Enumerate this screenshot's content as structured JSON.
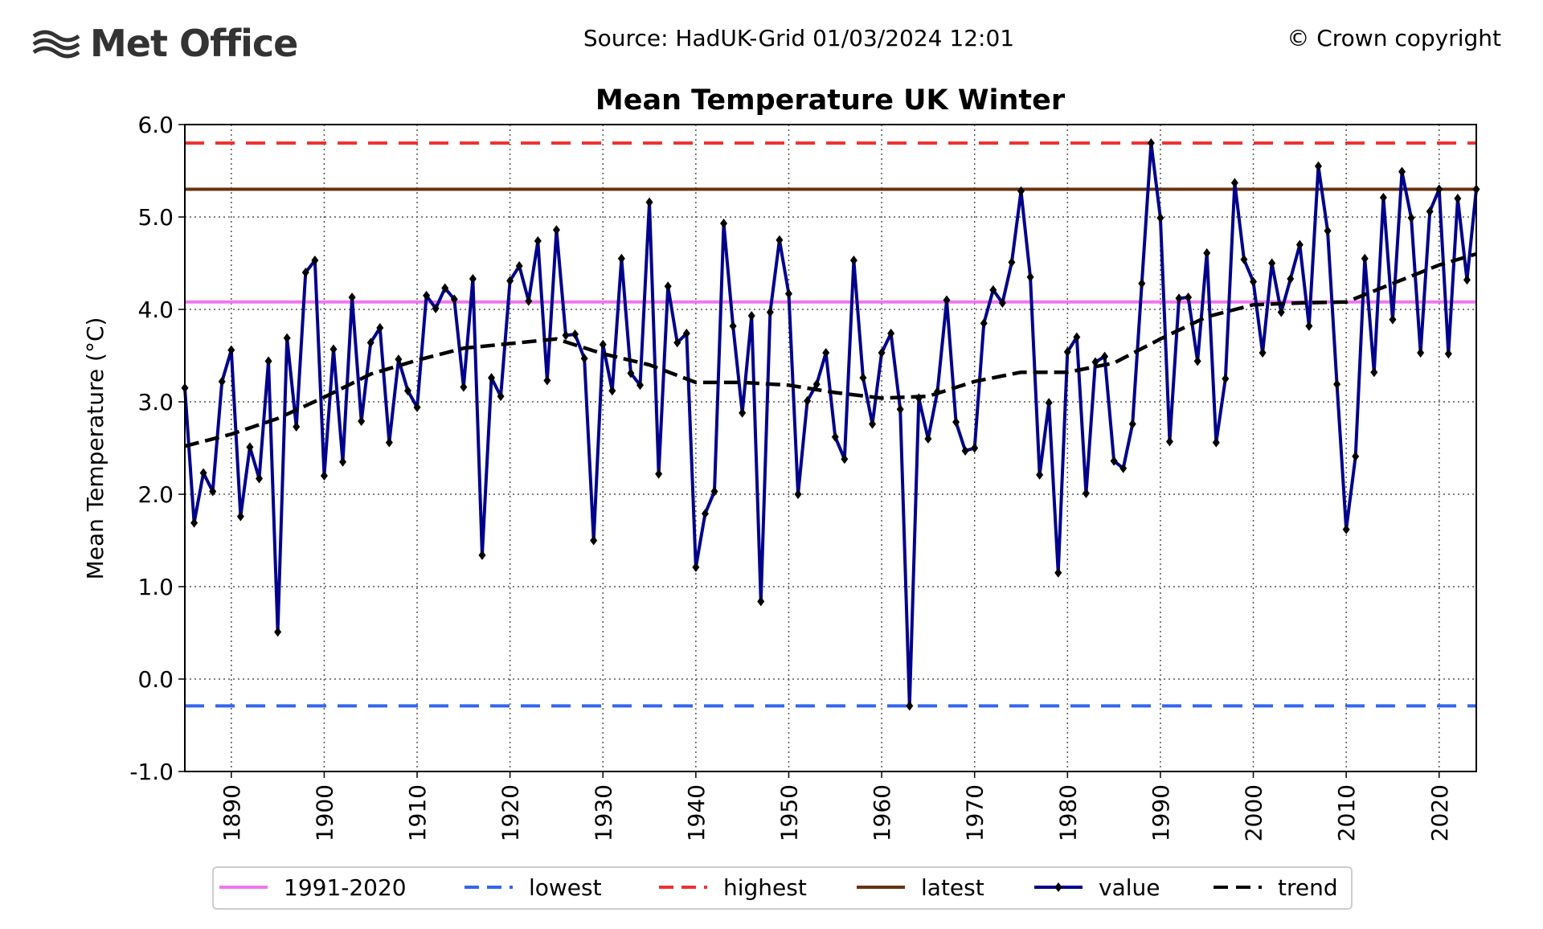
{
  "header": {
    "logo": "Met Office",
    "source": "Source: HadUK-Grid 01/03/2024 12:01",
    "copyright": "© Crown copyright"
  },
  "chart_data": {
    "type": "line",
    "title": "Mean Temperature UK Winter",
    "y_label": "Mean Temperature (°C)",
    "xlim": [
      1885,
      2024
    ],
    "ylim": [
      -1.0,
      6.0
    ],
    "xticks": [
      1890,
      1900,
      1910,
      1920,
      1930,
      1940,
      1950,
      1960,
      1970,
      1980,
      1990,
      2000,
      2010,
      2020
    ],
    "yticks": [
      {
        "value": -1.0,
        "label": "-1.0"
      },
      {
        "value": 0.0,
        "label": "0.0"
      },
      {
        "value": 1.0,
        "label": "1.0"
      },
      {
        "value": 2.0,
        "label": "2.0"
      },
      {
        "value": 3.0,
        "label": "3.0"
      },
      {
        "value": 4.0,
        "label": "4.0"
      },
      {
        "value": 5.0,
        "label": "5.0"
      },
      {
        "value": 6.0,
        "label": "6.0"
      }
    ],
    "grid": true,
    "series": [
      {
        "name": "1991-2020",
        "color": "#ee77ee",
        "kind": "hline",
        "dash": false,
        "value": 4.08
      },
      {
        "name": "lowest",
        "color": "#3366ee",
        "kind": "hline",
        "dash": true,
        "value": -0.29
      },
      {
        "name": "highest",
        "color": "#ee3333",
        "kind": "hline",
        "dash": true,
        "value": 5.8
      },
      {
        "name": "latest",
        "color": "#663311",
        "kind": "hline",
        "dash": false,
        "value": 5.3
      },
      {
        "name": "value",
        "color": "#00008b",
        "kind": "line",
        "dash": false,
        "markers": true,
        "x": [
          1885,
          1886,
          1887,
          1888,
          1889,
          1890,
          1891,
          1892,
          1893,
          1894,
          1895,
          1896,
          1897,
          1898,
          1899,
          1900,
          1901,
          1902,
          1903,
          1904,
          1905,
          1906,
          1907,
          1908,
          1909,
          1910,
          1911,
          1912,
          1913,
          1914,
          1915,
          1916,
          1917,
          1918,
          1919,
          1920,
          1921,
          1922,
          1923,
          1924,
          1925,
          1926,
          1927,
          1928,
          1929,
          1930,
          1931,
          1932,
          1933,
          1934,
          1935,
          1936,
          1937,
          1938,
          1939,
          1940,
          1941,
          1942,
          1943,
          1944,
          1945,
          1946,
          1947,
          1948,
          1949,
          1950,
          1951,
          1952,
          1953,
          1954,
          1955,
          1956,
          1957,
          1958,
          1959,
          1960,
          1961,
          1962,
          1963,
          1964,
          1965,
          1966,
          1967,
          1968,
          1969,
          1970,
          1971,
          1972,
          1973,
          1974,
          1975,
          1976,
          1977,
          1978,
          1979,
          1980,
          1981,
          1982,
          1983,
          1984,
          1985,
          1986,
          1987,
          1988,
          1989,
          1990,
          1991,
          1992,
          1993,
          1994,
          1995,
          1996,
          1997,
          1998,
          1999,
          2000,
          2001,
          2002,
          2003,
          2004,
          2005,
          2006,
          2007,
          2008,
          2009,
          2010,
          2011,
          2012,
          2013,
          2014,
          2015,
          2016,
          2017,
          2018,
          2019,
          2020,
          2021,
          2022,
          2023,
          2024
        ],
        "values": [
          3.15,
          1.69,
          2.23,
          2.03,
          3.22,
          3.56,
          1.76,
          2.51,
          2.17,
          3.44,
          0.51,
          3.69,
          2.73,
          4.4,
          4.53,
          2.2,
          3.57,
          2.35,
          4.13,
          2.79,
          3.64,
          3.8,
          2.56,
          3.46,
          3.12,
          2.94,
          4.15,
          4.01,
          4.23,
          4.11,
          3.16,
          4.33,
          1.34,
          3.26,
          3.06,
          4.31,
          4.47,
          4.09,
          4.74,
          3.23,
          4.86,
          3.72,
          3.73,
          3.47,
          1.5,
          3.62,
          3.12,
          4.55,
          3.31,
          3.18,
          5.16,
          2.22,
          4.25,
          3.64,
          3.74,
          1.21,
          1.79,
          2.03,
          4.93,
          3.82,
          2.88,
          3.93,
          0.84,
          3.97,
          4.75,
          4.17,
          2.0,
          3.01,
          3.19,
          3.53,
          2.62,
          2.38,
          4.53,
          3.26,
          2.76,
          3.53,
          3.74,
          2.92,
          -0.29,
          3.04,
          2.6,
          3.11,
          4.1,
          2.78,
          2.47,
          2.5,
          3.85,
          4.21,
          4.07,
          4.51,
          5.28,
          4.35,
          2.21,
          2.99,
          1.15,
          3.54,
          3.7,
          2.01,
          3.43,
          3.49,
          2.36,
          2.28,
          2.76,
          4.28,
          5.8,
          4.99,
          2.57,
          4.12,
          4.13,
          3.44,
          4.61,
          2.56,
          3.25,
          5.37,
          4.54,
          4.3,
          3.53,
          4.5,
          3.97,
          4.33,
          4.7,
          3.82,
          5.55,
          4.85,
          3.19,
          1.62,
          2.41,
          4.55,
          3.32,
          5.21,
          3.89,
          5.49,
          4.99,
          3.53,
          5.06,
          5.3,
          3.52,
          5.2,
          4.32,
          5.3
        ]
      },
      {
        "name": "trend",
        "color": "#000000",
        "kind": "line",
        "dash": true,
        "markers": false,
        "x": [
          1885,
          1890,
          1895,
          1900,
          1905,
          1910,
          1915,
          1920,
          1925,
          1930,
          1935,
          1940,
          1945,
          1950,
          1955,
          1960,
          1965,
          1970,
          1975,
          1980,
          1985,
          1990,
          1995,
          2000,
          2005,
          2010,
          2015,
          2020,
          2024
        ],
        "values": [
          2.52,
          2.65,
          2.82,
          3.05,
          3.3,
          3.45,
          3.58,
          3.63,
          3.68,
          3.52,
          3.4,
          3.21,
          3.21,
          3.18,
          3.1,
          3.04,
          3.06,
          3.22,
          3.32,
          3.32,
          3.42,
          3.68,
          3.92,
          4.05,
          4.07,
          4.08,
          4.28,
          4.48,
          4.6
        ]
      }
    ]
  }
}
